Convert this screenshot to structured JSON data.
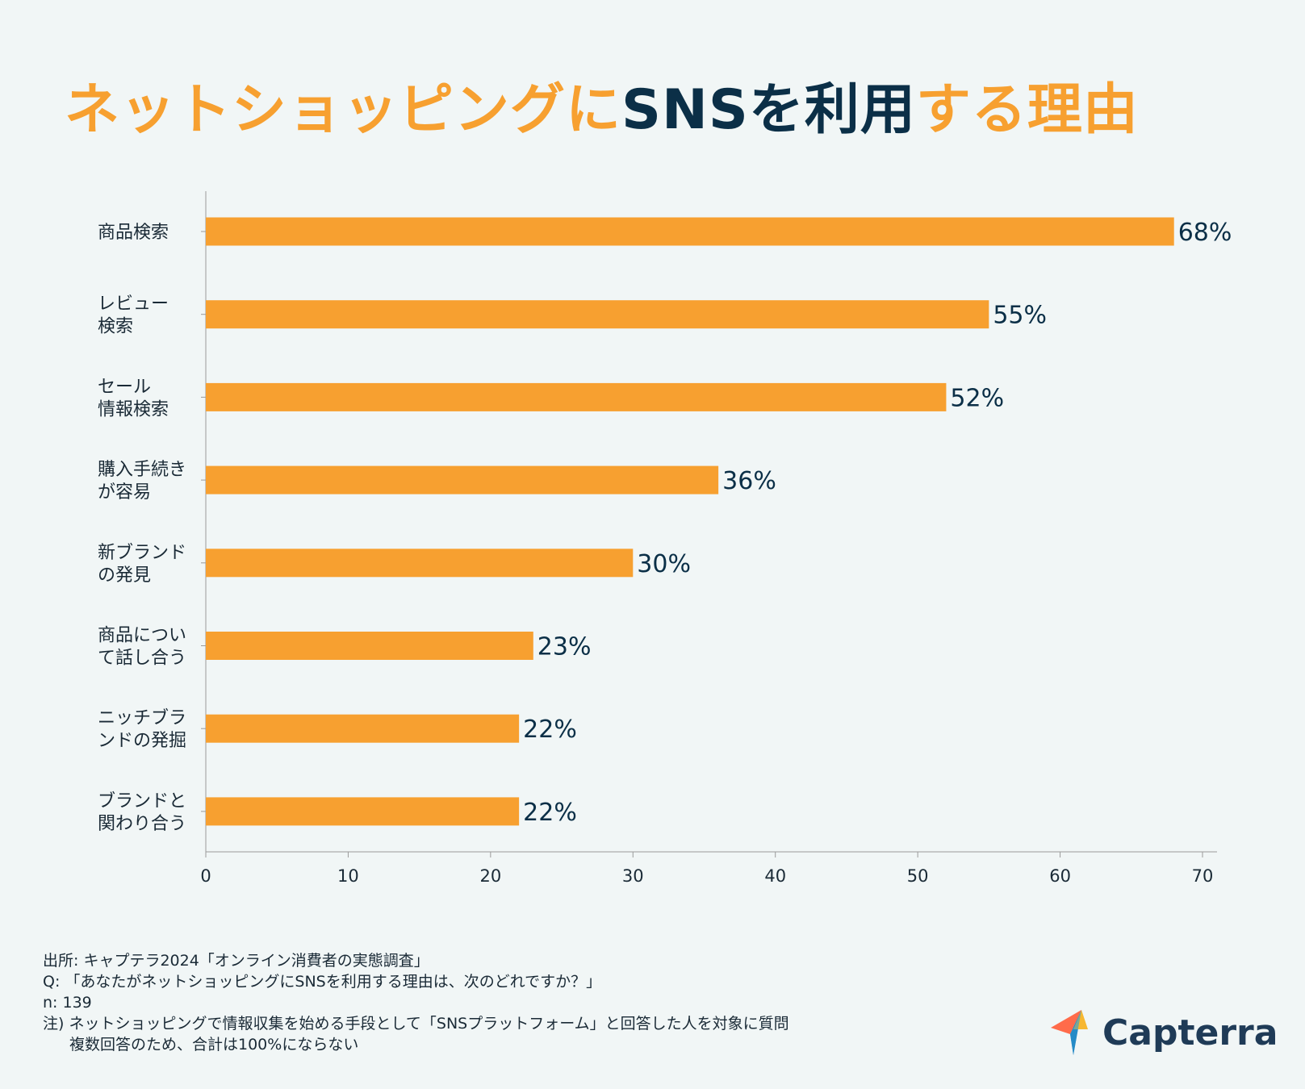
{
  "title": {
    "part1": "ネットショッピングに",
    "part2": "SNSを利用",
    "part3": "する理由"
  },
  "colors": {
    "bar": "#f7a030",
    "title_accent": "#f7a030",
    "title_dark": "#0b2f47",
    "text": "#1a2a36",
    "axis": "#9a9a9a"
  },
  "chart_data": {
    "type": "bar",
    "orientation": "horizontal",
    "categories": [
      [
        "商品検索"
      ],
      [
        "レビュー",
        "検索"
      ],
      [
        "セール",
        "情報検索"
      ],
      [
        "購入手続き",
        "が容易"
      ],
      [
        "新ブランド",
        "の発見"
      ],
      [
        "商品につい",
        "て話し合う"
      ],
      [
        "ニッチブラ",
        "ンドの発掘"
      ],
      [
        "ブランドと",
        "関わり合う"
      ]
    ],
    "values": [
      68,
      55,
      52,
      36,
      30,
      23,
      22,
      22
    ],
    "value_labels": [
      "68%",
      "55%",
      "52%",
      "36%",
      "30%",
      "23%",
      "22%",
      "22%"
    ],
    "xlim": [
      0,
      70
    ],
    "xticks": [
      0,
      10,
      20,
      30,
      40,
      50,
      60,
      70
    ],
    "xlabel": "",
    "ylabel": "",
    "grid": false
  },
  "footer": {
    "source": "出所: キャプテラ2024「オンライン消費者の実態調査」",
    "question": "Q: 「あなたがネットショッピングにSNSを利用する理由は、次のどれですか？」",
    "n": "n: 139",
    "note1": "注) ネットショッピングで情報収集を始める手段として「SNSプラットフォーム」と回答した人を対象に質問",
    "note2": "複数回答のため、合計は100%にならない"
  },
  "logo": {
    "text": "Capterra",
    "icon": "capterra-arrow-icon"
  }
}
